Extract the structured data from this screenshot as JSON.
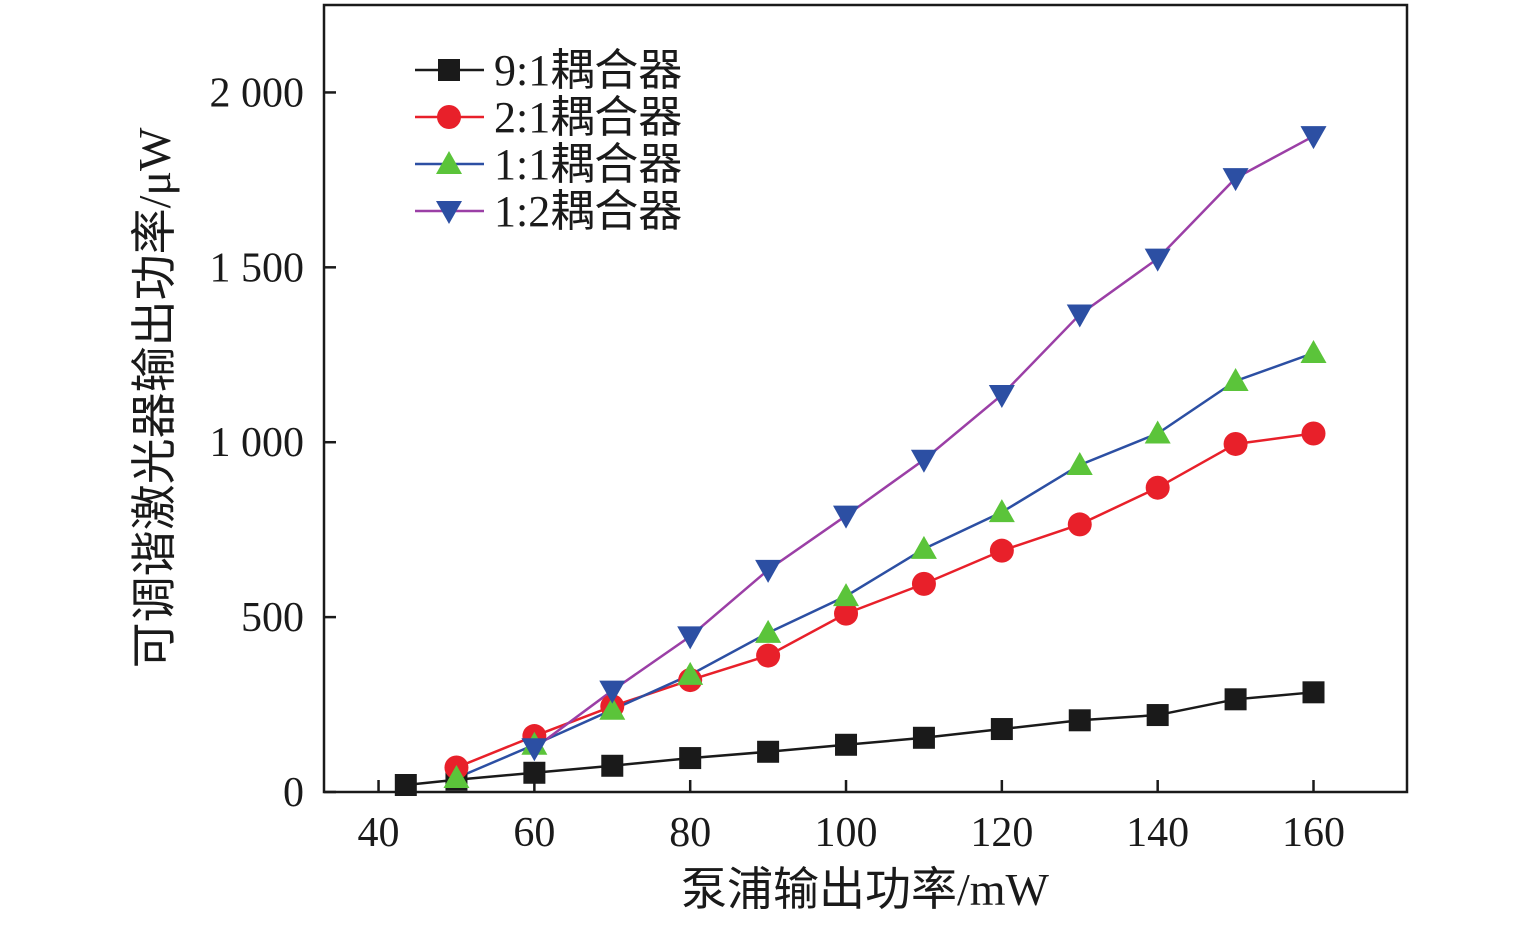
{
  "chart_data": {
    "type": "line",
    "xlabel": "泵浦输出功率/mW",
    "ylabel": "可调谐激光器输出功率/μW",
    "xlim": [
      33,
      172
    ],
    "ylim": [
      0,
      2250
    ],
    "xticks": [
      40,
      60,
      80,
      100,
      120,
      140,
      160
    ],
    "xtick_labels": [
      "40",
      "60",
      "80",
      "100",
      "120",
      "140",
      "160"
    ],
    "yticks": [
      0,
      500,
      1000,
      1500,
      2000
    ],
    "ytick_labels": [
      "0",
      "500",
      "1 000",
      "1 500",
      "2 000"
    ],
    "grid": false,
    "legend_position": "top-left",
    "series": [
      {
        "name": "9:1耦合器",
        "color": "#1a1a1a",
        "line_color": "#1a1a1a",
        "marker": "square",
        "x": [
          43.5,
          50,
          60,
          70,
          80,
          90,
          100,
          110,
          120,
          130,
          140,
          150,
          160
        ],
        "y": [
          20,
          35,
          55,
          75,
          97,
          115,
          135,
          155,
          180,
          205,
          220,
          265,
          285
        ]
      },
      {
        "name": "2:1耦合器",
        "color": "#e8202a",
        "line_color": "#e8202a",
        "marker": "circle",
        "x": [
          50,
          60,
          70,
          80,
          90,
          100,
          110,
          120,
          130,
          140,
          150,
          160
        ],
        "y": [
          70,
          160,
          245,
          320,
          390,
          510,
          595,
          690,
          765,
          870,
          995,
          1025
        ]
      },
      {
        "name": "1:1耦合器",
        "color": "#5bc43a",
        "line_color": "#2c4fa3",
        "marker": "triangle-up",
        "x": [
          50,
          60,
          70,
          80,
          90,
          100,
          110,
          120,
          130,
          140,
          150,
          160
        ],
        "y": [
          40,
          135,
          235,
          335,
          455,
          560,
          695,
          800,
          935,
          1025,
          1175,
          1255
        ]
      },
      {
        "name": "1:2耦合器",
        "color": "#2c4fa3",
        "line_color": "#9b3fa6",
        "marker": "triangle-down",
        "x": [
          60,
          70,
          80,
          90,
          100,
          110,
          120,
          130,
          140,
          150,
          160
        ],
        "y": [
          125,
          290,
          445,
          635,
          790,
          950,
          1135,
          1365,
          1525,
          1755,
          1875
        ]
      }
    ]
  }
}
